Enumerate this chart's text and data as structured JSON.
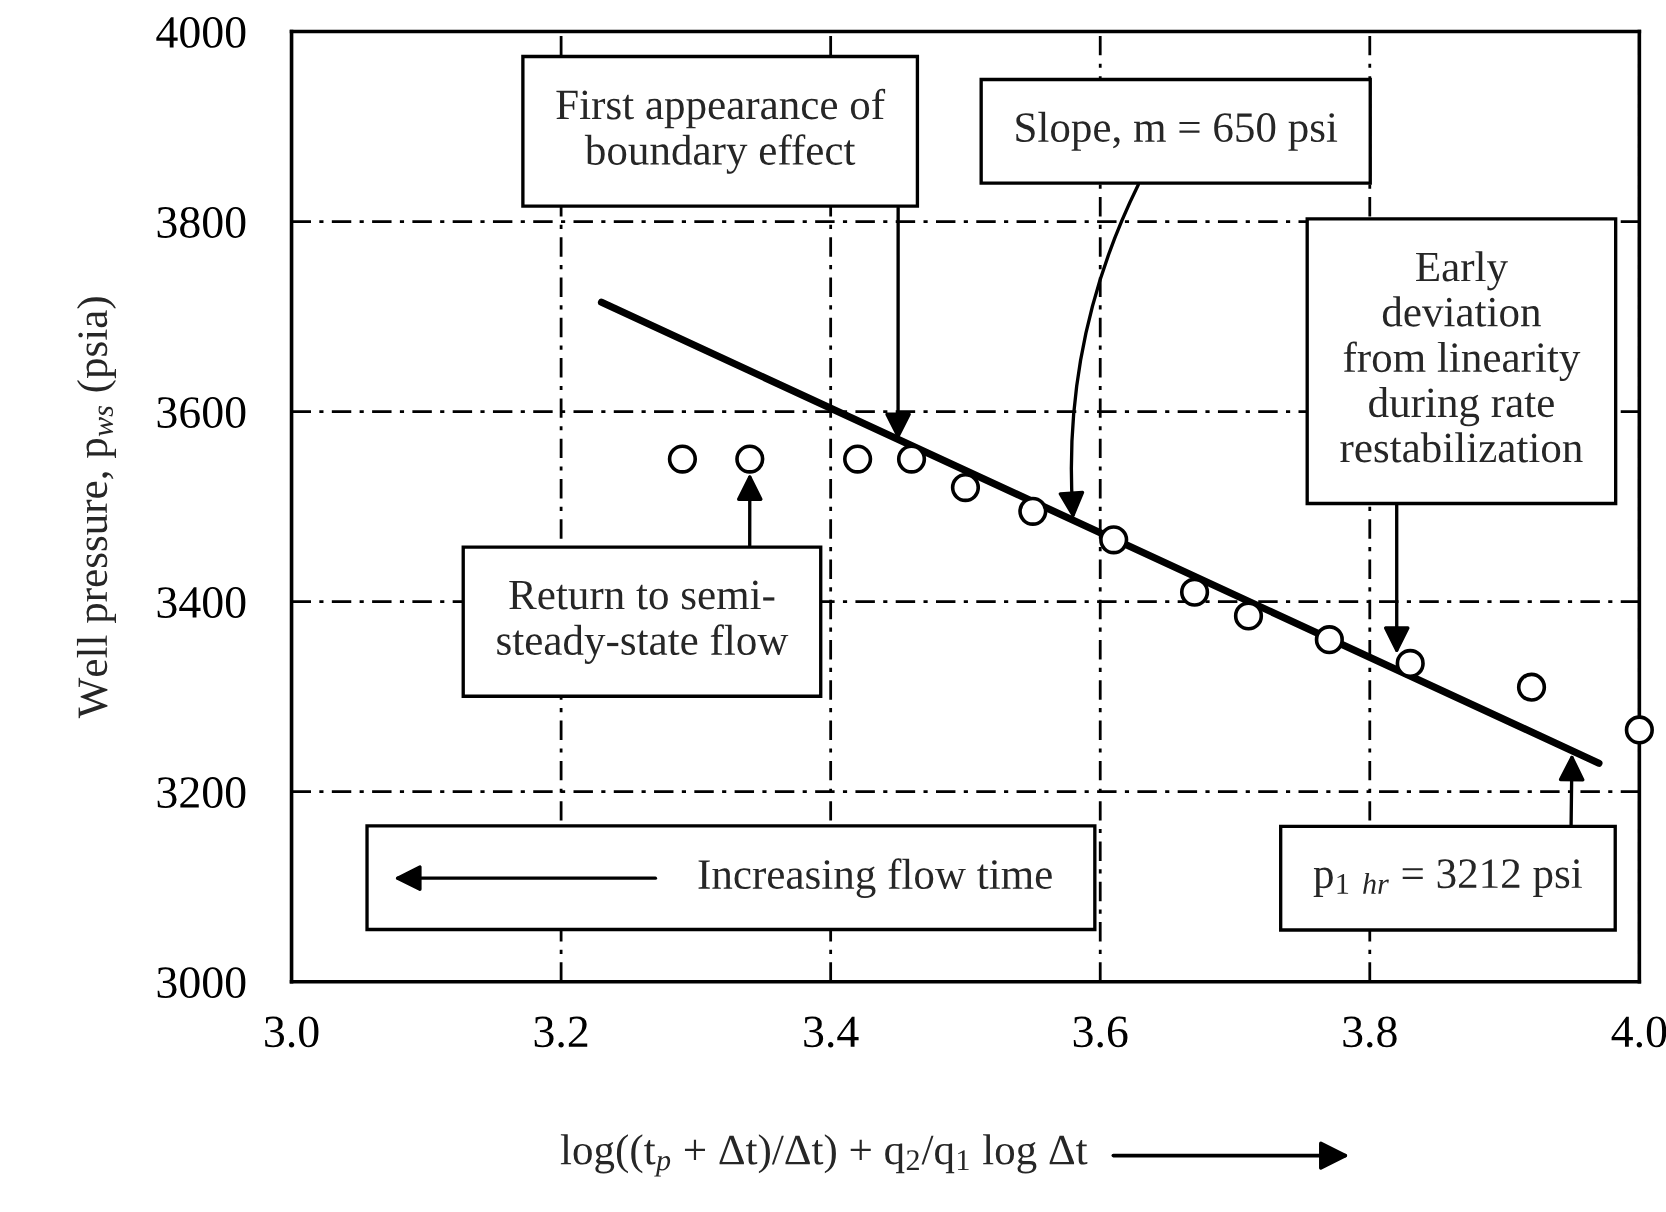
{
  "chart_data": {
    "type": "scatter",
    "xlabel": "log((t$_{p}$ + Δt)/Δt) + q$_{2}$/q$_{1}$ log Δt",
    "ylabel": "Well pressure, p$_{ws}$ (psia)",
    "xlim": [
      3.0,
      4.0
    ],
    "ylim": [
      3000,
      4000
    ],
    "xticks": [
      {
        "value": 3.0,
        "label": "3.0"
      },
      3.2,
      3.4,
      3.6,
      3.8,
      {
        "value": 4.0,
        "label": "4.0"
      }
    ],
    "yticks": [
      3000,
      3200,
      3400,
      3600,
      3800,
      4000
    ],
    "grid": true,
    "series": [
      {
        "marker": "circle",
        "color": "#000000",
        "x": [
          3.29,
          3.34,
          3.42,
          3.46,
          3.5,
          3.55,
          3.61,
          3.67,
          3.71,
          3.77,
          3.83,
          3.92,
          4.0
        ],
        "values": [
          3550,
          3550,
          3550,
          3550,
          3520,
          3495,
          3465,
          3410,
          3385,
          3360,
          3335,
          3310,
          3265
        ]
      },
      {
        "type": "line",
        "color": "#000000",
        "line_style": "solid",
        "x": [
          3.23,
          3.97
        ],
        "values": [
          3715,
          3230
        ]
      }
    ],
    "annotations": [
      {
        "text": "First appearance of\nboundary effect",
        "x": 3.45,
        "y": 3570
      },
      {
        "text": "Slope, m = 650 psi",
        "x": 3.58,
        "y": 3487
      },
      {
        "text": "Early\ndeviation\nfrom linearity\nduring rate\nrestabilization",
        "x": 3.82,
        "y": 3345
      },
      {
        "text": "Return to semi-\nsteady-state flow",
        "x": 3.34,
        "y": 3535
      },
      "Increasing flow time",
      {
        "text": "p$_{1}$ $_{hr}$ = 3212 psi",
        "x": 3.95,
        "y": 3240
      }
    ]
  }
}
